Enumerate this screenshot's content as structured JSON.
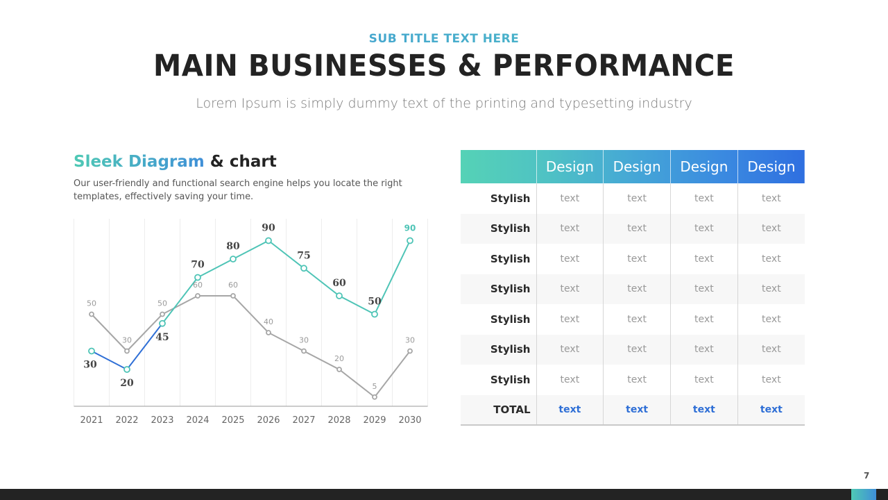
{
  "header": {
    "subtitle": "SUB TITLE TEXT HERE",
    "title": "MAIN BUSINESSES & PERFORMANCE",
    "tagline": "Lorem Ipsum is simply dummy text of the printing and typesetting industry"
  },
  "section": {
    "title_highlight": "Sleek Diagram",
    "title_rest": " & chart",
    "description": "Our user-friendly and functional search engine helps you locate the right templates, effectively saving your time."
  },
  "chart_data": {
    "type": "line",
    "title": "",
    "xlabel": "",
    "ylabel": "",
    "x": [
      "2021",
      "2022",
      "2023",
      "2024",
      "2025",
      "2026",
      "2027",
      "2028",
      "2029",
      "2030"
    ],
    "ylim": [
      0,
      100
    ],
    "grid": "vertical",
    "series": [
      {
        "values": [
          30,
          20,
          45,
          70,
          80,
          90,
          75,
          60,
          50,
          90
        ],
        "color": "#4ec4b6",
        "color_start": "#2f6fd6"
      },
      {
        "values": [
          50,
          30,
          50,
          60,
          60,
          40,
          30,
          20,
          5,
          30
        ],
        "color": "#a6a6a6"
      }
    ]
  },
  "table": {
    "columns": [
      "Design",
      "Design",
      "Design",
      "Design"
    ],
    "header_colors": [
      "#55d2b6",
      "#4fc2c4",
      "#45a7d6",
      "#3b8be0",
      "#2f6fe0"
    ],
    "rows": [
      {
        "label": "Stylish",
        "cells": [
          "text",
          "text",
          "text",
          "text"
        ]
      },
      {
        "label": "Stylish",
        "cells": [
          "text",
          "text",
          "text",
          "text"
        ]
      },
      {
        "label": "Stylish",
        "cells": [
          "text",
          "text",
          "text",
          "text"
        ]
      },
      {
        "label": "Stylish",
        "cells": [
          "text",
          "text",
          "text",
          "text"
        ]
      },
      {
        "label": "Stylish",
        "cells": [
          "text",
          "text",
          "text",
          "text"
        ]
      },
      {
        "label": "Stylish",
        "cells": [
          "text",
          "text",
          "text",
          "text"
        ]
      },
      {
        "label": "Stylish",
        "cells": [
          "text",
          "text",
          "text",
          "text"
        ]
      }
    ],
    "total": {
      "label": "TOTAL",
      "cells": [
        "text",
        "text",
        "text",
        "text"
      ]
    }
  },
  "footer": {
    "page_number": "7"
  }
}
